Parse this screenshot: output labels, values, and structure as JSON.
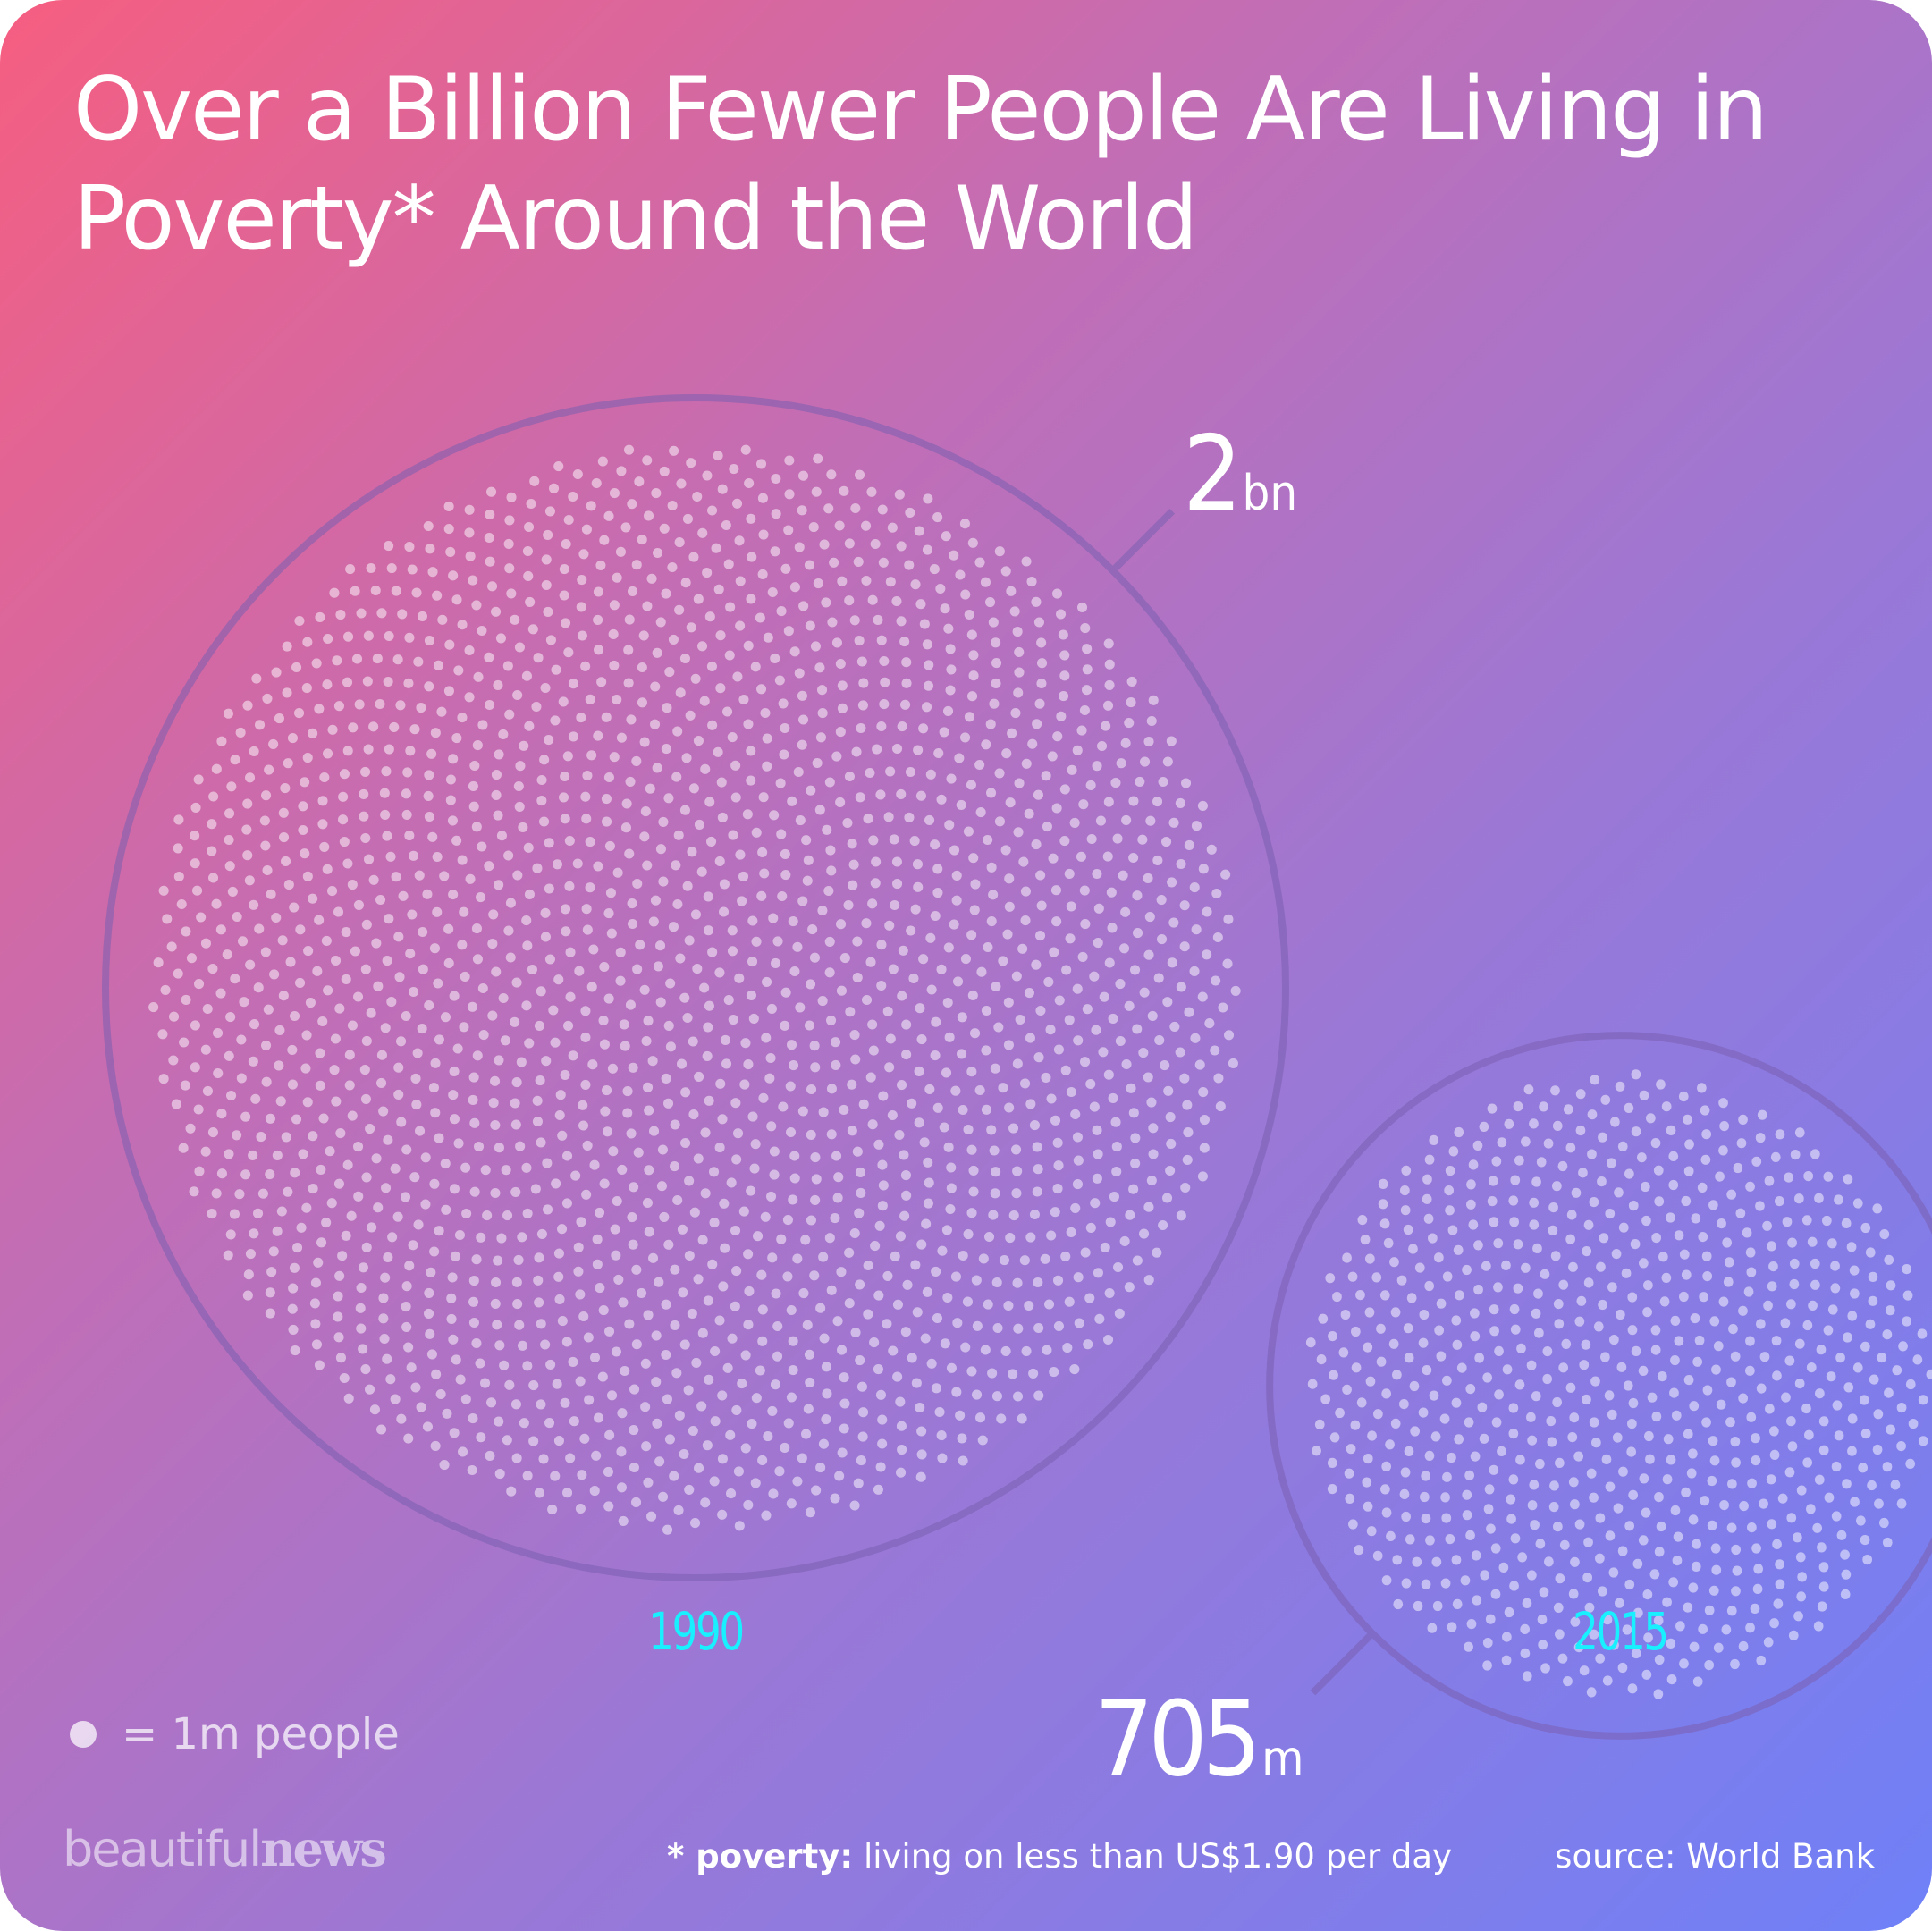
{
  "title": "Over a Billion Fewer People Are Living in Poverty* Around the World",
  "chart_data": {
    "type": "bubble",
    "unit_note": "= 1m people",
    "series": [
      {
        "year": "1990",
        "value_millions": 2000,
        "value_number": "2",
        "value_unit": "bn"
      },
      {
        "year": "2015",
        "value_millions": 705,
        "value_number": "705",
        "value_unit": "m"
      }
    ]
  },
  "footnote": {
    "term": "* poverty:",
    "definition": "living on less than US$1.90 per day"
  },
  "source": "source: World Bank",
  "brand": {
    "light": "beautiful",
    "bold": "news"
  },
  "colors": {
    "year_label": "#19f0ff",
    "dot": "#ffffff",
    "ring": "#7a5fb0"
  }
}
